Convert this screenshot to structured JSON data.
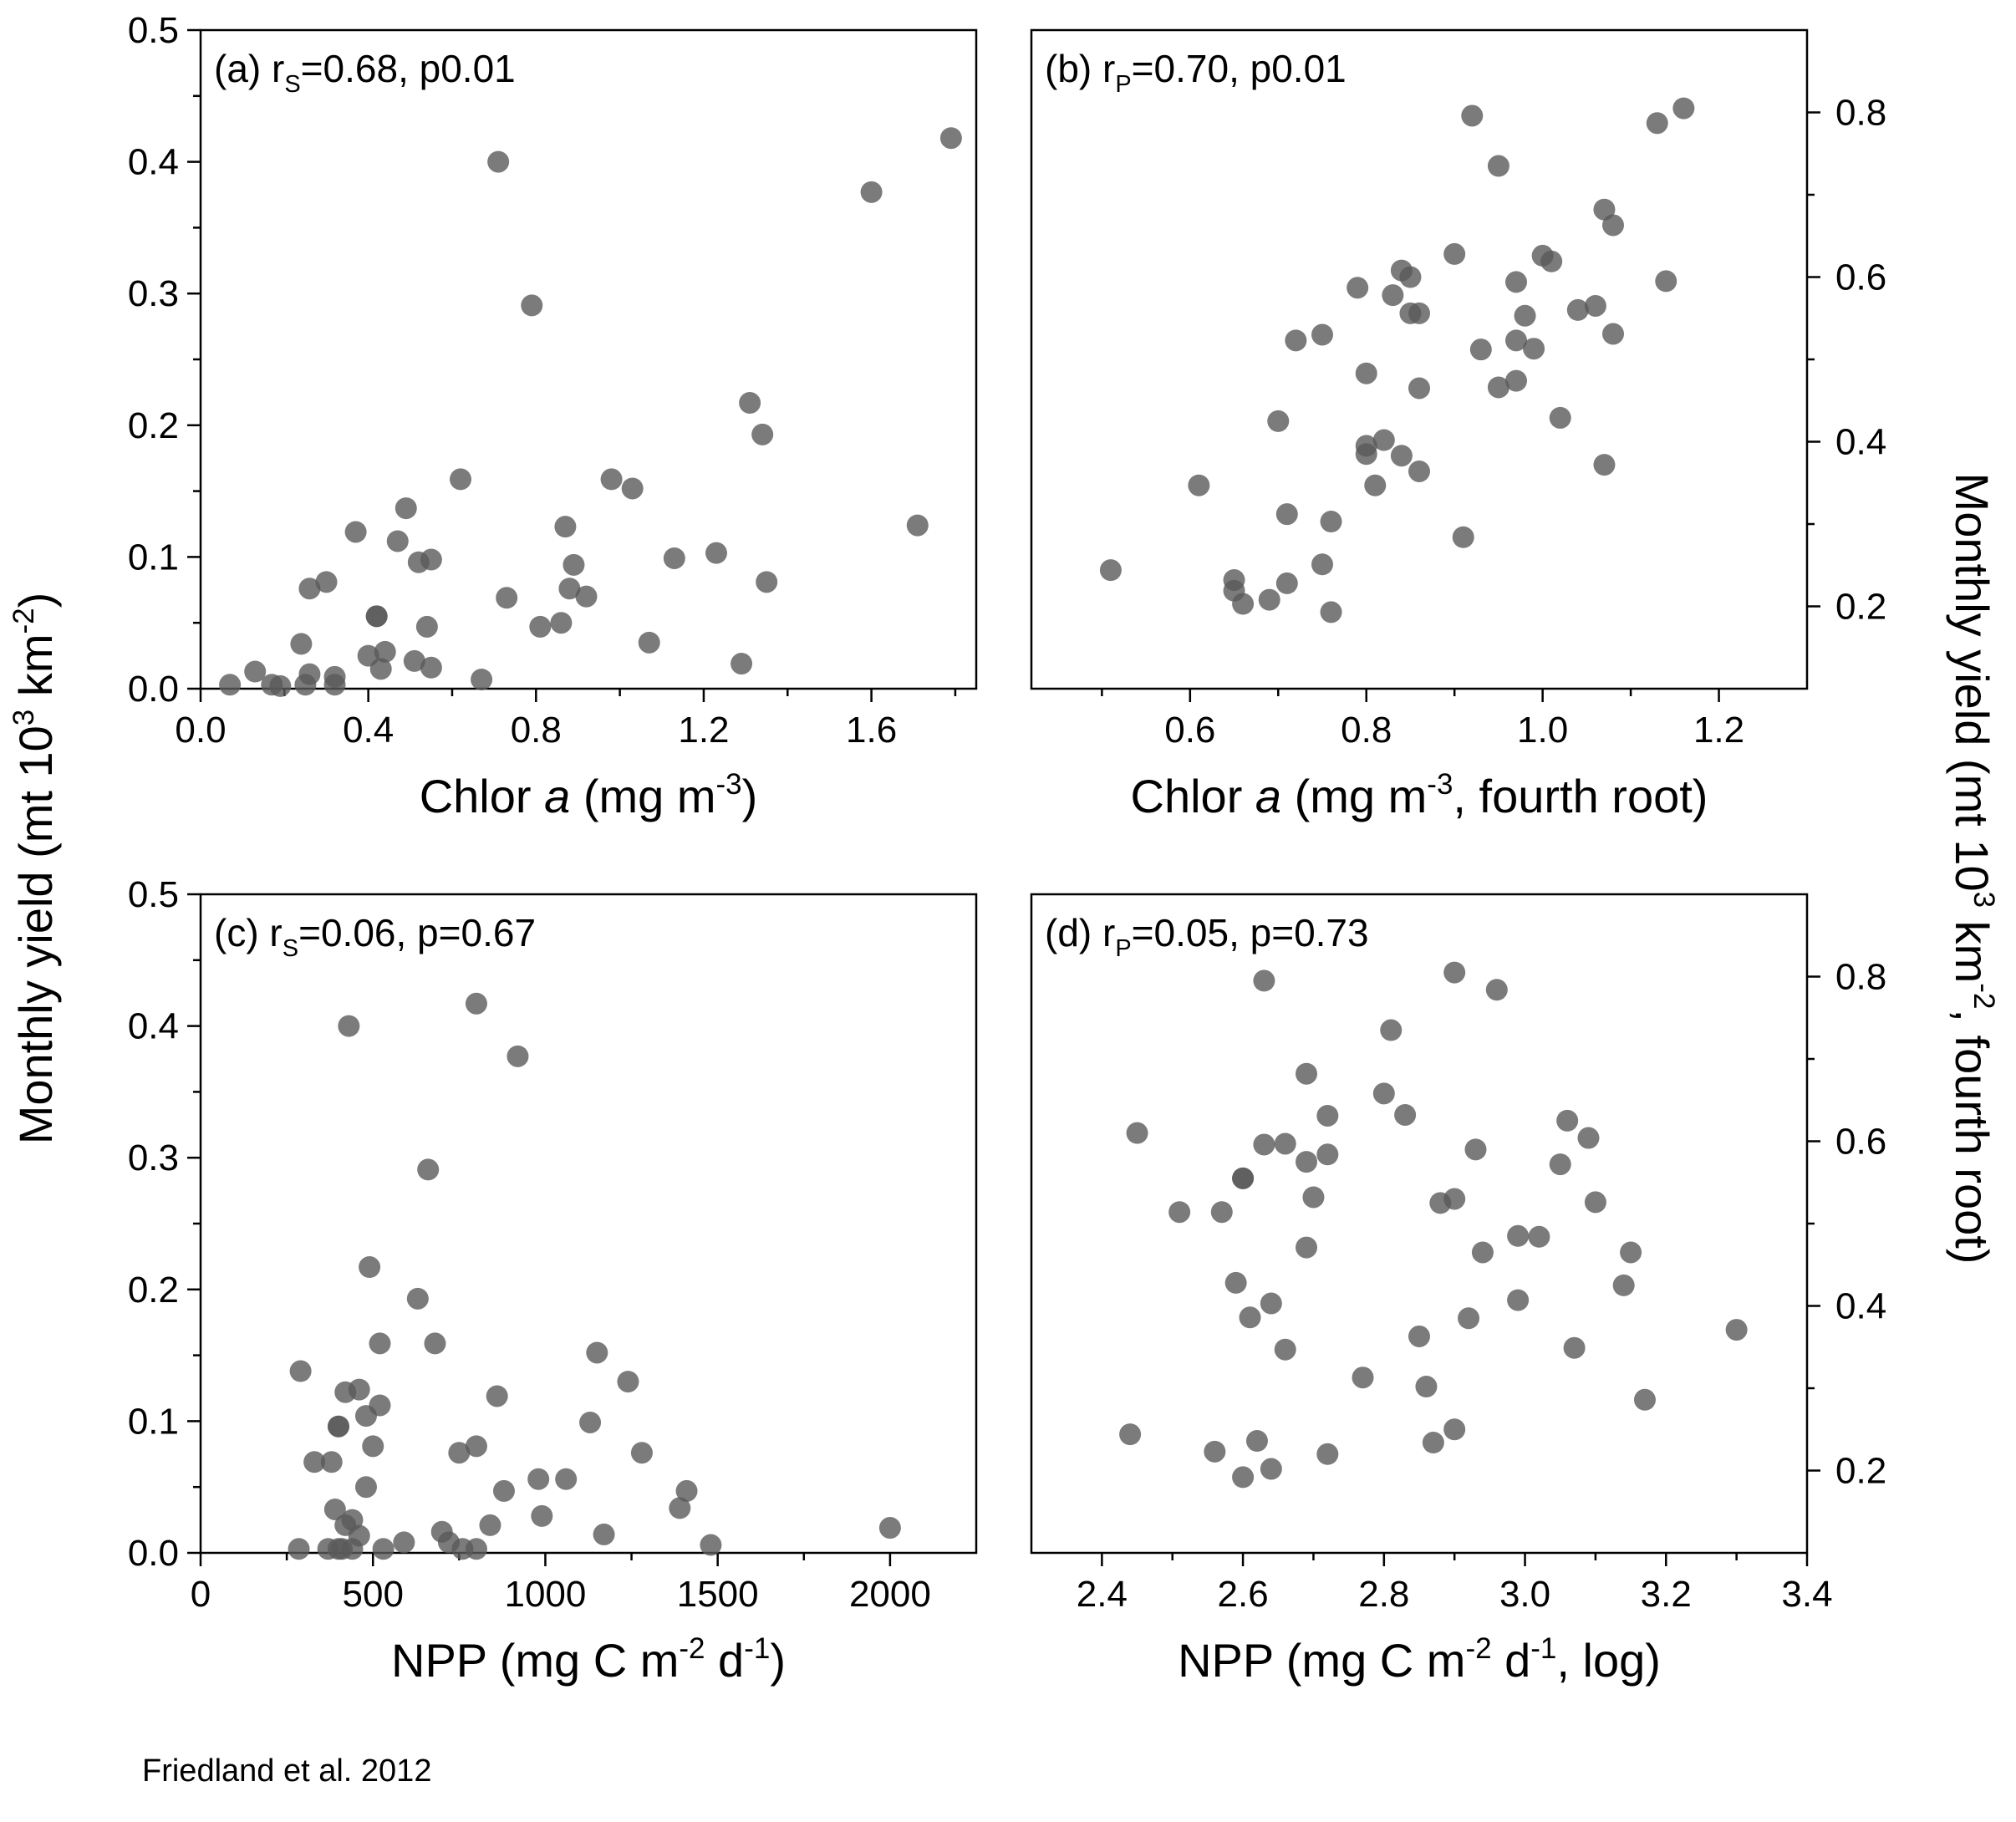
{
  "figure": {
    "ylabel_left": "Monthly yield (mt 10<sup>3</sup> km<sup>-2</sup>)",
    "ylabel_right": "Monthly yield (mt 10<sup>3</sup> km<sup>-2</sup>, fourth root)",
    "credit": "Friedland et al. 2012",
    "marker_color": "#5a5a5a",
    "marker_opacity": 0.8
  },
  "chart_data": [
    {
      "type": "scatter",
      "panel": "a",
      "annotation": "(a) r<sub>S</sub>=0.68, p<0.01",
      "xlabel": "Chlor <i>a</i> (mg m<sup>-3</sup>)",
      "ylabel": "Monthly yield (mt 10<sup>3</sup> km<sup>-2</sup>)",
      "xlim": [
        0.0,
        1.85
      ],
      "ylim": [
        0.0,
        0.5
      ],
      "xticks": [
        0.0,
        0.4,
        0.8,
        1.2,
        1.6
      ],
      "xticklabels": [
        "0.0",
        "0.4",
        "0.8",
        "1.2",
        "1.6"
      ],
      "yticks": [
        0.0,
        0.1,
        0.2,
        0.3,
        0.4,
        0.5
      ],
      "yticklabels": [
        "0.0",
        "0.1",
        "0.2",
        "0.3",
        "0.4",
        "0.5"
      ],
      "y_axis_side": "left",
      "points": [
        [
          0.07,
          0.003
        ],
        [
          0.13,
          0.013
        ],
        [
          0.17,
          0.003
        ],
        [
          0.19,
          0.002
        ],
        [
          0.24,
          0.034
        ],
        [
          0.25,
          0.003
        ],
        [
          0.26,
          0.011
        ],
        [
          0.26,
          0.076
        ],
        [
          0.3,
          0.081
        ],
        [
          0.32,
          0.003
        ],
        [
          0.32,
          0.009
        ],
        [
          0.37,
          0.119
        ],
        [
          0.4,
          0.025
        ],
        [
          0.42,
          0.055
        ],
        [
          0.42,
          0.055
        ],
        [
          0.43,
          0.015
        ],
        [
          0.44,
          0.028
        ],
        [
          0.47,
          0.112
        ],
        [
          0.49,
          0.137
        ],
        [
          0.51,
          0.021
        ],
        [
          0.52,
          0.096
        ],
        [
          0.54,
          0.047
        ],
        [
          0.55,
          0.098
        ],
        [
          0.55,
          0.016
        ],
        [
          0.62,
          0.159
        ],
        [
          0.67,
          0.007
        ],
        [
          0.71,
          0.4
        ],
        [
          0.73,
          0.069
        ],
        [
          0.79,
          0.291
        ],
        [
          0.81,
          0.047
        ],
        [
          0.86,
          0.05
        ],
        [
          0.87,
          0.123
        ],
        [
          0.88,
          0.076
        ],
        [
          0.89,
          0.094
        ],
        [
          0.92,
          0.07
        ],
        [
          0.98,
          0.159
        ],
        [
          1.03,
          0.152
        ],
        [
          1.07,
          0.035
        ],
        [
          1.13,
          0.099
        ],
        [
          1.23,
          0.103
        ],
        [
          1.29,
          0.019
        ],
        [
          1.31,
          0.217
        ],
        [
          1.34,
          0.193
        ],
        [
          1.35,
          0.081
        ],
        [
          1.6,
          0.377
        ],
        [
          1.71,
          0.124
        ],
        [
          1.79,
          0.418
        ]
      ]
    },
    {
      "type": "scatter",
      "panel": "b",
      "annotation": "(b) r<sub>P</sub>=0.70, p<0.01",
      "xlabel": "Chlor <i>a</i> (mg m<sup>-3</sup>, fourth root)",
      "ylabel": "Monthly yield (mt 10<sup>3</sup> km<sup>-2</sup>, fourth root)",
      "xlim": [
        0.42,
        1.3
      ],
      "ylim": [
        0.1,
        0.9
      ],
      "xticks": [
        0.6,
        0.8,
        1.0,
        1.2
      ],
      "xticklabels": [
        "0.6",
        "0.8",
        "1.0",
        "1.2"
      ],
      "yticks": [
        0.2,
        0.4,
        0.6,
        0.8
      ],
      "yticklabels": [
        "0.2",
        "0.4",
        "0.6",
        "0.8"
      ],
      "y_axis_side": "right",
      "points": [
        [
          0.51,
          0.244
        ],
        [
          0.61,
          0.347
        ],
        [
          0.65,
          0.219
        ],
        [
          0.65,
          0.232
        ],
        [
          0.66,
          0.203
        ],
        [
          0.69,
          0.208
        ],
        [
          0.7,
          0.425
        ],
        [
          0.71,
          0.312
        ],
        [
          0.71,
          0.228
        ],
        [
          0.72,
          0.523
        ],
        [
          0.75,
          0.53
        ],
        [
          0.75,
          0.251
        ],
        [
          0.76,
          0.303
        ],
        [
          0.76,
          0.193
        ],
        [
          0.79,
          0.587
        ],
        [
          0.8,
          0.385
        ],
        [
          0.8,
          0.395
        ],
        [
          0.8,
          0.483
        ],
        [
          0.81,
          0.347
        ],
        [
          0.82,
          0.402
        ],
        [
          0.83,
          0.578
        ],
        [
          0.84,
          0.608
        ],
        [
          0.84,
          0.383
        ],
        [
          0.85,
          0.6
        ],
        [
          0.85,
          0.556
        ],
        [
          0.86,
          0.465
        ],
        [
          0.86,
          0.364
        ],
        [
          0.86,
          0.556
        ],
        [
          0.9,
          0.628
        ],
        [
          0.91,
          0.284
        ],
        [
          0.92,
          0.796
        ],
        [
          0.93,
          0.512
        ],
        [
          0.95,
          0.735
        ],
        [
          0.95,
          0.466
        ],
        [
          0.97,
          0.474
        ],
        [
          0.97,
          0.523
        ],
        [
          0.97,
          0.594
        ],
        [
          0.98,
          0.553
        ],
        [
          0.99,
          0.513
        ],
        [
          1.0,
          0.626
        ],
        [
          1.01,
          0.619
        ],
        [
          1.02,
          0.429
        ],
        [
          1.04,
          0.56
        ],
        [
          1.06,
          0.565
        ],
        [
          1.07,
          0.372
        ],
        [
          1.07,
          0.682
        ],
        [
          1.08,
          0.663
        ],
        [
          1.08,
          0.531
        ],
        [
          1.13,
          0.787
        ],
        [
          1.14,
          0.595
        ],
        [
          1.16,
          0.805
        ]
      ]
    },
    {
      "type": "scatter",
      "panel": "c",
      "annotation": "(c) r<sub>S</sub>=0.06, p=0.67",
      "xlabel": "NPP (mg C m<sup>-2</sup> d<sup>-1</sup>)",
      "ylabel": "Monthly yield (mt 10<sup>3</sup> km<sup>-2</sup>)",
      "xlim": [
        0,
        2250
      ],
      "ylim": [
        0.0,
        0.5
      ],
      "xticks": [
        0,
        500,
        1000,
        1500,
        2000
      ],
      "xticklabels": [
        "0",
        "500",
        "1000",
        "1500",
        "2000"
      ],
      "yticks": [
        0.0,
        0.1,
        0.2,
        0.3,
        0.4,
        0.5
      ],
      "yticklabels": [
        "0.0",
        "0.1",
        "0.2",
        "0.3",
        "0.4",
        "0.5"
      ],
      "y_axis_side": "left",
      "points": [
        [
          285,
          0.003
        ],
        [
          290,
          0.138
        ],
        [
          330,
          0.069
        ],
        [
          370,
          0.003
        ],
        [
          380,
          0.069
        ],
        [
          390,
          0.033
        ],
        [
          400,
          0.096
        ],
        [
          400,
          0.096
        ],
        [
          400,
          0.003
        ],
        [
          410,
          0.003
        ],
        [
          420,
          0.122
        ],
        [
          420,
          0.021
        ],
        [
          430,
          0.4
        ],
        [
          440,
          0.025
        ],
        [
          440,
          0.003
        ],
        [
          460,
          0.124
        ],
        [
          460,
          0.013
        ],
        [
          480,
          0.05
        ],
        [
          480,
          0.104
        ],
        [
          490,
          0.217
        ],
        [
          500,
          0.081
        ],
        [
          520,
          0.112
        ],
        [
          520,
          0.159
        ],
        [
          530,
          0.003
        ],
        [
          590,
          0.008
        ],
        [
          630,
          0.193
        ],
        [
          660,
          0.291
        ],
        [
          680,
          0.159
        ],
        [
          700,
          0.016
        ],
        [
          720,
          0.008
        ],
        [
          750,
          0.076
        ],
        [
          760,
          0.003
        ],
        [
          800,
          0.081
        ],
        [
          800,
          0.417
        ],
        [
          800,
          0.003
        ],
        [
          840,
          0.021
        ],
        [
          860,
          0.119
        ],
        [
          880,
          0.047
        ],
        [
          920,
          0.377
        ],
        [
          980,
          0.056
        ],
        [
          990,
          0.028
        ],
        [
          1060,
          0.056
        ],
        [
          1130,
          0.099
        ],
        [
          1150,
          0.152
        ],
        [
          1170,
          0.014
        ],
        [
          1240,
          0.13
        ],
        [
          1280,
          0.076
        ],
        [
          1390,
          0.034
        ],
        [
          1410,
          0.047
        ],
        [
          1480,
          0.006
        ],
        [
          2000,
          0.019
        ]
      ]
    },
    {
      "type": "scatter",
      "panel": "d",
      "annotation": "(d) r<sub>P</sub>=0.05, p=0.73",
      "xlabel": "NPP (mg C m<sup>-2</sup> d<sup>-1</sup>, log)",
      "ylabel": "Monthly yield (mt 10<sup>3</sup> km<sup>-2</sup>, fourth root)",
      "xlim": [
        2.3,
        3.4
      ],
      "ylim": [
        0.1,
        0.9
      ],
      "xticks": [
        2.4,
        2.6,
        2.8,
        3.0,
        3.2,
        3.4
      ],
      "xticklabels": [
        "2.4",
        "2.6",
        "2.8",
        "3.0",
        "3.2",
        "3.4"
      ],
      "yticks": [
        0.2,
        0.4,
        0.6,
        0.8
      ],
      "yticklabels": [
        "0.2",
        "0.4",
        "0.6",
        "0.8"
      ],
      "y_axis_side": "right",
      "points": [
        [
          2.44,
          0.244
        ],
        [
          2.45,
          0.61
        ],
        [
          2.51,
          0.514
        ],
        [
          2.56,
          0.223
        ],
        [
          2.57,
          0.514
        ],
        [
          2.59,
          0.428
        ],
        [
          2.6,
          0.192
        ],
        [
          2.6,
          0.555
        ],
        [
          2.6,
          0.555
        ],
        [
          2.61,
          0.386
        ],
        [
          2.62,
          0.236
        ],
        [
          2.63,
          0.795
        ],
        [
          2.63,
          0.596
        ],
        [
          2.64,
          0.202
        ],
        [
          2.64,
          0.403
        ],
        [
          2.66,
          0.597
        ],
        [
          2.66,
          0.347
        ],
        [
          2.69,
          0.471
        ],
        [
          2.69,
          0.575
        ],
        [
          2.69,
          0.682
        ],
        [
          2.7,
          0.532
        ],
        [
          2.72,
          0.631
        ],
        [
          2.72,
          0.584
        ],
        [
          2.72,
          0.22
        ],
        [
          2.77,
          0.313
        ],
        [
          2.8,
          0.658
        ],
        [
          2.81,
          0.735
        ],
        [
          2.83,
          0.632
        ],
        [
          2.85,
          0.363
        ],
        [
          2.86,
          0.302
        ],
        [
          2.87,
          0.234
        ],
        [
          2.88,
          0.525
        ],
        [
          2.9,
          0.25
        ],
        [
          2.9,
          0.53
        ],
        [
          2.9,
          0.805
        ],
        [
          2.92,
          0.385
        ],
        [
          2.93,
          0.59
        ],
        [
          2.94,
          0.465
        ],
        [
          2.96,
          0.784
        ],
        [
          2.99,
          0.485
        ],
        [
          2.99,
          0.407
        ],
        [
          3.02,
          0.484
        ],
        [
          3.05,
          0.572
        ],
        [
          3.06,
          0.625
        ],
        [
          3.07,
          0.349
        ],
        [
          3.09,
          0.604
        ],
        [
          3.1,
          0.526
        ],
        [
          3.14,
          0.425
        ],
        [
          3.15,
          0.465
        ],
        [
          3.17,
          0.286
        ],
        [
          3.3,
          0.371
        ]
      ]
    }
  ]
}
